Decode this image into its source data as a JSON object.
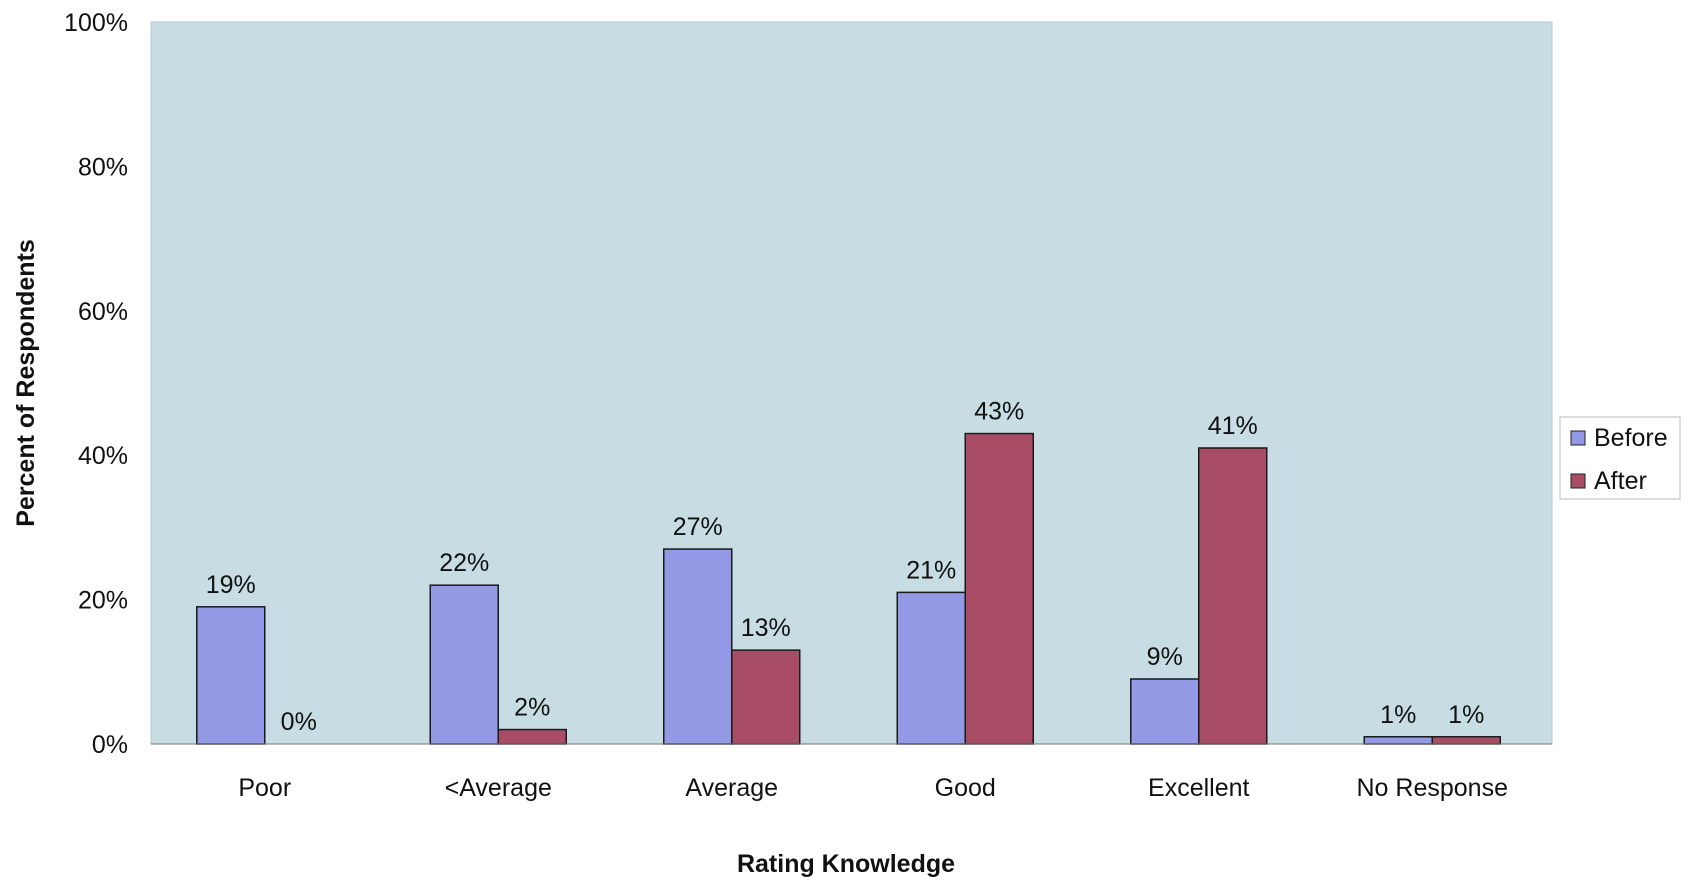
{
  "chart_data": {
    "type": "bar",
    "categories": [
      "Poor",
      "<Average",
      "Average",
      "Good",
      "Excellent",
      "No Response"
    ],
    "series": [
      {
        "name": "Before",
        "values": [
          19,
          22,
          27,
          21,
          9,
          1
        ],
        "labels": [
          "19%",
          "22%",
          "27%",
          "21%",
          "9%",
          "1%"
        ],
        "color": "#9399e4"
      },
      {
        "name": "After",
        "values": [
          0,
          2,
          13,
          43,
          41,
          1
        ],
        "labels": [
          "0%",
          "2%",
          "13%",
          "43%",
          "41%",
          "1%"
        ],
        "color": "#a84d65"
      }
    ],
    "title": "",
    "xlabel": "Rating Knowledge",
    "ylabel": "Percent of Respondents",
    "ylim": [
      0,
      100
    ],
    "yticks": [
      "0%",
      "20%",
      "40%",
      "60%",
      "80%",
      "100%"
    ],
    "grid": false,
    "legend_position": "right",
    "plot_background": "#c7dde3"
  }
}
